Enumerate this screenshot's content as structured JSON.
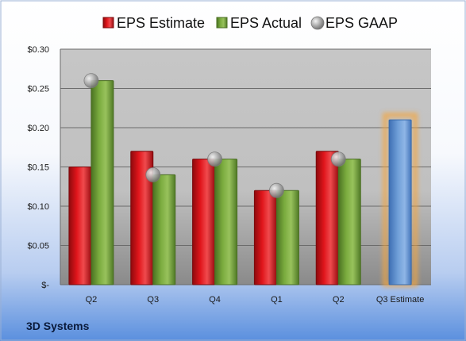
{
  "chart_data": {
    "type": "bar",
    "categories": [
      "Q2",
      "Q3",
      "Q4",
      "Q1",
      "Q2",
      "Q3 Estimate"
    ],
    "series": [
      {
        "name": "EPS Estimate",
        "values": [
          0.15,
          0.17,
          0.16,
          0.12,
          0.17,
          null
        ],
        "color": "#e0151b"
      },
      {
        "name": "EPS Actual",
        "values": [
          0.26,
          0.14,
          0.16,
          0.12,
          0.16,
          null
        ],
        "color": "#7aab3e"
      },
      {
        "name": "EPS GAAP",
        "values": [
          0.26,
          0.14,
          0.16,
          0.12,
          0.16,
          null
        ],
        "color": "#b4b4b4",
        "marker": "circle"
      }
    ],
    "forecast": {
      "category": "Q3 Estimate",
      "value": 0.21,
      "color": "#6f9fd8",
      "glow": "#f4a640"
    },
    "ylim": [
      0,
      0.3
    ],
    "yticks": [
      0,
      0.05,
      0.1,
      0.15,
      0.2,
      0.25,
      0.3
    ],
    "ytick_labels": [
      "$-",
      "$0.05",
      "$0.10",
      "$0.15",
      "$0.20",
      "$0.25",
      "$0.30"
    ],
    "grid": true,
    "legend": "top",
    "title": "",
    "xlabel": "",
    "ylabel": ""
  },
  "company": "3D Systems"
}
